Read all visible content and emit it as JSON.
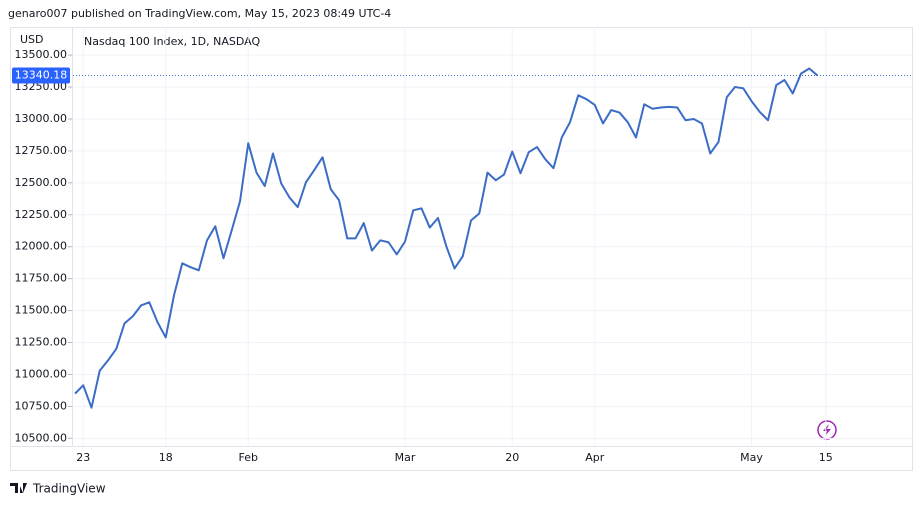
{
  "header": {
    "byline": "genaro007 published on TradingView.com, May 15, 2023 08:49 UTC-4"
  },
  "footer": {
    "brand": "TradingView"
  },
  "chart_data": {
    "type": "line",
    "title": "Nasdaq 100 Index, 1D, NASDAQ",
    "y_axis_label": "USD",
    "categories": [
      null,
      "23",
      null,
      null,
      null,
      null,
      null,
      null,
      null,
      null,
      null,
      "18",
      null,
      null,
      null,
      null,
      null,
      null,
      null,
      null,
      null,
      "Feb",
      null,
      null,
      null,
      null,
      null,
      null,
      null,
      null,
      null,
      null,
      null,
      null,
      null,
      null,
      null,
      null,
      null,
      null,
      "Mar",
      null,
      null,
      null,
      null,
      null,
      null,
      null,
      null,
      null,
      null,
      null,
      null,
      "20",
      null,
      null,
      null,
      null,
      null,
      null,
      null,
      null,
      null,
      "Apr",
      null,
      null,
      null,
      null,
      null,
      null,
      null,
      null,
      null,
      null,
      null,
      null,
      null,
      null,
      null,
      null,
      null,
      null,
      "May",
      null,
      null,
      null,
      null,
      null,
      null,
      null,
      null,
      "15"
    ],
    "series": [
      {
        "color": "#3b6cc6",
        "values": [
          10850,
          10915,
          10740,
          11030,
          11110,
          11200,
          11400,
          11455,
          11540,
          11565,
          11410,
          11290,
          11620,
          11870,
          11840,
          11815,
          12050,
          12160,
          11910,
          12130,
          12355,
          12810,
          12580,
          12475,
          12730,
          12495,
          12385,
          12310,
          12505,
          12600,
          12700,
          12450,
          12365,
          12065,
          12065,
          12185,
          11970,
          12050,
          12035,
          11940,
          12040,
          12285,
          12300,
          12150,
          12225,
          12005,
          11830,
          11925,
          12205,
          12260,
          12580,
          12520,
          12565,
          12745,
          12575,
          12740,
          12780,
          12685,
          12615,
          12855,
          12975,
          13185,
          13155,
          13110,
          12965,
          13070,
          13050,
          12975,
          12855,
          13115,
          13080,
          13090,
          13095,
          13090,
          12990,
          13000,
          12965,
          12730,
          12820,
          13170,
          13250,
          13240,
          13140,
          13055,
          12990,
          13265,
          13305,
          13200,
          13355,
          13395,
          13340.18,
          null
        ]
      }
    ],
    "ylim": [
      10440,
      13720
    ],
    "yticks": [
      {
        "value": 10500,
        "label": "10500.00"
      },
      {
        "value": 10750,
        "label": "10750.00"
      },
      {
        "value": 11000,
        "label": "11000.00"
      },
      {
        "value": 11250,
        "label": "11250.00"
      },
      {
        "value": 11500,
        "label": "11500.00"
      },
      {
        "value": 11750,
        "label": "11750.00"
      },
      {
        "value": 12000,
        "label": "12000.00"
      },
      {
        "value": 12250,
        "label": "12250.00"
      },
      {
        "value": 12500,
        "label": "12500.00"
      },
      {
        "value": 12750,
        "label": "12750.00"
      },
      {
        "value": 13000,
        "label": "13000.00"
      },
      {
        "value": 13250,
        "label": "13250.00"
      },
      {
        "value": 13500,
        "label": "13500.00"
      }
    ],
    "grid": true
  }
}
